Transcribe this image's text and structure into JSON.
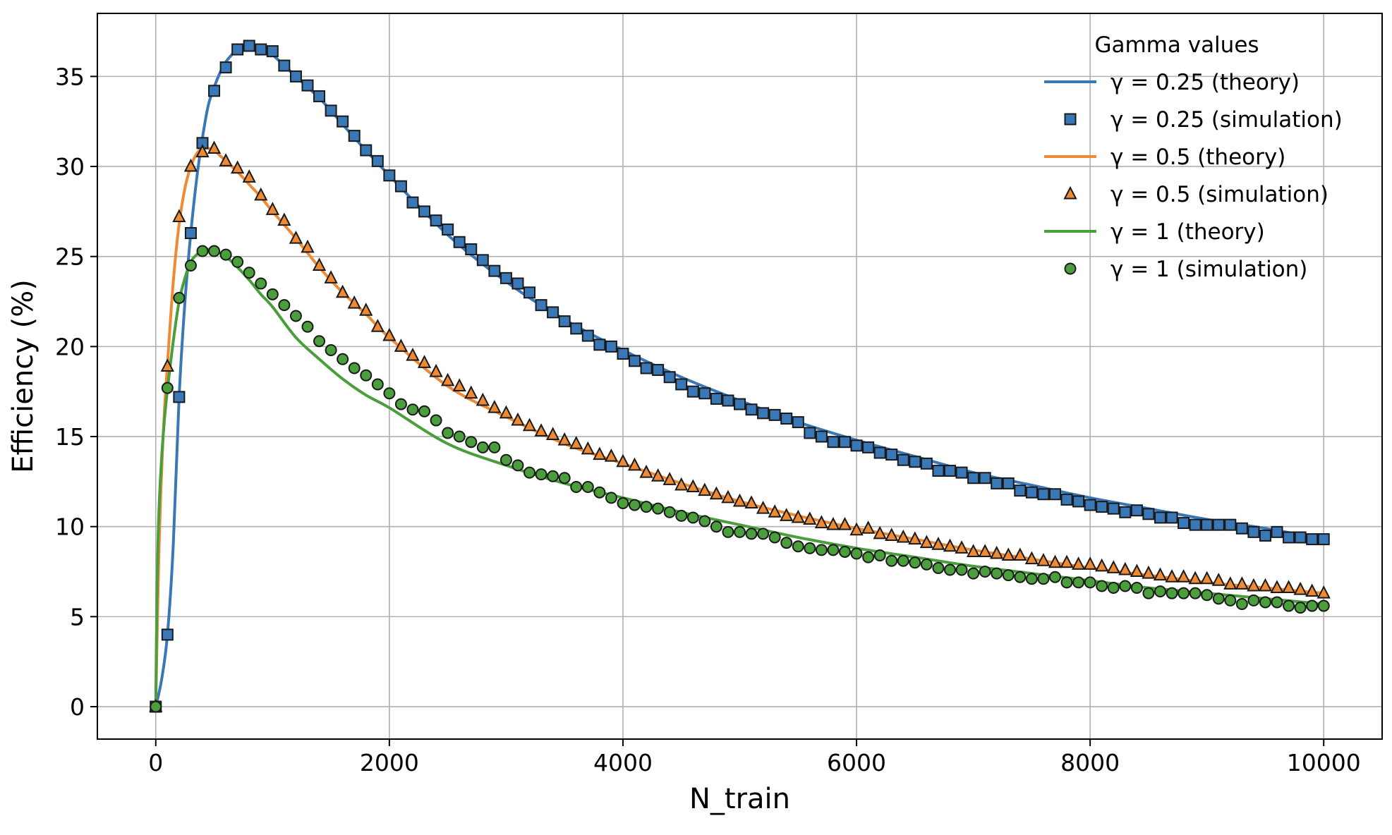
{
  "chart_data": {
    "type": "line",
    "title": "",
    "xlabel": "N_train",
    "ylabel": "Efficiency (%)",
    "xlim": [
      -500,
      10500
    ],
    "ylim": [
      -1.8,
      38.5
    ],
    "xticks": [
      0,
      2000,
      4000,
      6000,
      8000,
      10000
    ],
    "yticks": [
      0,
      5,
      10,
      15,
      20,
      25,
      30,
      35
    ],
    "grid": true,
    "legend": {
      "title": "Gamma values",
      "placement": "top-right"
    },
    "colors": {
      "gamma_025": "#3a77b6",
      "gamma_05": "#ef8a34",
      "gamma_1": "#4a9e3c"
    },
    "series": [
      {
        "name": "γ = 0.25 (theory)",
        "kind": "line",
        "color": "#3a77b6",
        "x": [
          0,
          50,
          100,
          150,
          200,
          250,
          300,
          350,
          400,
          450,
          500,
          550,
          600,
          650,
          700,
          750,
          800,
          850,
          900,
          950,
          1000,
          1100,
          1200,
          1300,
          1400,
          1500,
          1700,
          2000,
          2500,
          3000,
          3500,
          4000,
          4500,
          5000,
          5500,
          6000,
          6500,
          7000,
          7500,
          8000,
          8500,
          9000,
          9500,
          10000
        ],
        "y": [
          0,
          1.5,
          4.0,
          9.0,
          17.2,
          22.5,
          26.3,
          29.3,
          31.6,
          33.4,
          34.4,
          35.2,
          35.8,
          36.2,
          36.5,
          36.6,
          36.7,
          36.6,
          36.5,
          36.4,
          36.2,
          35.6,
          35.0,
          34.4,
          33.8,
          33.1,
          31.6,
          29.5,
          26.2,
          23.6,
          21.5,
          19.8,
          18.3,
          17.0,
          15.8,
          14.8,
          13.9,
          13.0,
          12.3,
          11.6,
          11.0,
          10.4,
          9.9,
          9.3
        ]
      },
      {
        "name": "γ = 0.25 (simulation)",
        "kind": "marker",
        "marker": "square",
        "color": "#3a77b6",
        "x": [
          0,
          100,
          200,
          300,
          400,
          500,
          600,
          700,
          800,
          900,
          1000,
          1100,
          1200,
          1300,
          1400,
          1500,
          1600,
          1700,
          1800,
          1900,
          2000,
          2100,
          2200,
          2300,
          2400,
          2500,
          2600,
          2700,
          2800,
          2900,
          3000,
          3100,
          3200,
          3300,
          3400,
          3500,
          3600,
          3700,
          3800,
          3900,
          4000,
          4100,
          4200,
          4300,
          4400,
          4500,
          4600,
          4700,
          4800,
          4900,
          5000,
          5100,
          5200,
          5300,
          5400,
          5500,
          5600,
          5700,
          5800,
          5900,
          6000,
          6100,
          6200,
          6300,
          6400,
          6500,
          6600,
          6700,
          6800,
          6900,
          7000,
          7100,
          7200,
          7300,
          7400,
          7500,
          7600,
          7700,
          7800,
          7900,
          8000,
          8100,
          8200,
          8300,
          8400,
          8500,
          8600,
          8700,
          8800,
          8900,
          9000,
          9100,
          9200,
          9300,
          9400,
          9500,
          9600,
          9700,
          9800,
          9900,
          10000
        ],
        "y": [
          0,
          4.0,
          17.2,
          26.3,
          31.3,
          34.2,
          35.5,
          36.5,
          36.7,
          36.5,
          36.4,
          35.6,
          35.0,
          34.5,
          33.9,
          33.1,
          32.5,
          31.7,
          30.9,
          30.3,
          29.5,
          28.9,
          28.0,
          27.5,
          27.0,
          26.5,
          25.8,
          25.4,
          24.8,
          24.2,
          23.8,
          23.5,
          23.0,
          22.3,
          21.9,
          21.4,
          21.0,
          20.6,
          20.1,
          20.0,
          19.6,
          19.2,
          18.8,
          18.7,
          18.3,
          17.9,
          17.5,
          17.4,
          17.1,
          17.0,
          16.8,
          16.5,
          16.3,
          16.2,
          16.0,
          15.8,
          15.2,
          15.0,
          14.7,
          14.7,
          14.5,
          14.4,
          14.1,
          14.0,
          13.7,
          13.6,
          13.5,
          13.1,
          13.1,
          13.0,
          12.7,
          12.7,
          12.4,
          12.4,
          12.0,
          11.9,
          11.8,
          11.8,
          11.5,
          11.4,
          11.2,
          11.1,
          11.0,
          10.8,
          10.9,
          10.7,
          10.5,
          10.5,
          10.2,
          10.1,
          10.1,
          10.1,
          10.1,
          9.9,
          9.7,
          9.5,
          9.7,
          9.4,
          9.4,
          9.3,
          9.3
        ]
      },
      {
        "name": "γ = 0.5 (theory)",
        "kind": "line",
        "color": "#ef8a34",
        "x": [
          0,
          25,
          50,
          75,
          100,
          150,
          200,
          250,
          300,
          350,
          400,
          450,
          500,
          550,
          600,
          700,
          800,
          900,
          1000,
          1200,
          1400,
          1600,
          1800,
          2000,
          2500,
          3000,
          3500,
          4000,
          4500,
          5000,
          5500,
          6000,
          6500,
          7000,
          7500,
          8000,
          8500,
          9000,
          9500,
          10000
        ],
        "y": [
          0,
          8.0,
          13.0,
          16.5,
          19.0,
          23.6,
          26.8,
          28.8,
          30.0,
          30.7,
          31.0,
          31.0,
          30.9,
          30.6,
          30.3,
          29.7,
          29.0,
          28.3,
          27.5,
          26.0,
          24.4,
          23.0,
          21.8,
          20.5,
          17.8,
          16.1,
          14.6,
          13.5,
          12.4,
          11.4,
          10.6,
          9.9,
          9.3,
          8.7,
          8.2,
          7.7,
          7.3,
          6.9,
          6.6,
          6.3
        ]
      },
      {
        "name": "γ = 0.5 (simulation)",
        "kind": "marker",
        "marker": "triangle",
        "color": "#ef8a34",
        "x": [
          0,
          100,
          200,
          300,
          400,
          500,
          600,
          700,
          800,
          900,
          1000,
          1100,
          1200,
          1300,
          1400,
          1500,
          1600,
          1700,
          1800,
          1900,
          2000,
          2100,
          2200,
          2300,
          2400,
          2500,
          2600,
          2700,
          2800,
          2900,
          3000,
          3100,
          3200,
          3300,
          3400,
          3500,
          3600,
          3700,
          3800,
          3900,
          4000,
          4100,
          4200,
          4300,
          4400,
          4500,
          4600,
          4700,
          4800,
          4900,
          5000,
          5100,
          5200,
          5300,
          5400,
          5500,
          5600,
          5700,
          5800,
          5900,
          6000,
          6100,
          6200,
          6300,
          6400,
          6500,
          6600,
          6700,
          6800,
          6900,
          7000,
          7100,
          7200,
          7300,
          7400,
          7500,
          7600,
          7700,
          7800,
          7900,
          8000,
          8100,
          8200,
          8300,
          8400,
          8500,
          8600,
          8700,
          8800,
          8900,
          9000,
          9100,
          9200,
          9300,
          9400,
          9500,
          9600,
          9700,
          9800,
          9900,
          10000
        ],
        "y": [
          0,
          18.9,
          27.2,
          30.0,
          30.8,
          31.0,
          30.3,
          29.9,
          29.4,
          28.4,
          27.6,
          27.0,
          26.0,
          25.5,
          24.5,
          23.8,
          23.0,
          22.4,
          22.0,
          21.1,
          20.6,
          20.0,
          19.5,
          19.1,
          18.6,
          18.1,
          17.8,
          17.4,
          17.0,
          16.6,
          16.3,
          15.9,
          15.6,
          15.3,
          15.1,
          14.8,
          14.6,
          14.3,
          14.0,
          13.9,
          13.6,
          13.4,
          13.0,
          12.8,
          12.6,
          12.3,
          12.2,
          12.0,
          11.8,
          11.6,
          11.4,
          11.3,
          11.0,
          10.8,
          10.6,
          10.5,
          10.4,
          10.2,
          10.1,
          10.1,
          9.8,
          9.9,
          9.6,
          9.5,
          9.4,
          9.3,
          9.1,
          9.0,
          8.9,
          8.8,
          8.6,
          8.6,
          8.5,
          8.4,
          8.4,
          8.2,
          8.1,
          8.0,
          8.0,
          7.9,
          7.9,
          7.8,
          7.7,
          7.6,
          7.5,
          7.4,
          7.3,
          7.2,
          7.2,
          7.1,
          7.1,
          7.0,
          6.8,
          6.8,
          6.7,
          6.7,
          6.6,
          6.6,
          6.5,
          6.4,
          6.3
        ]
      },
      {
        "name": "γ = 1 (theory)",
        "kind": "line",
        "color": "#4a9e3c",
        "x": [
          0,
          10,
          25,
          50,
          75,
          100,
          150,
          200,
          250,
          300,
          350,
          400,
          450,
          500,
          550,
          600,
          700,
          800,
          900,
          1000,
          1200,
          1400,
          1600,
          1800,
          2000,
          2500,
          3000,
          3500,
          4000,
          4500,
          5000,
          5500,
          6000,
          6500,
          7000,
          7500,
          8000,
          8500,
          9000,
          9500,
          10000
        ],
        "y": [
          0,
          6.0,
          10.5,
          13.8,
          16.0,
          17.6,
          20.3,
          22.5,
          23.8,
          24.7,
          25.1,
          25.3,
          25.4,
          25.3,
          25.2,
          25.0,
          24.4,
          23.7,
          22.9,
          22.2,
          20.5,
          19.3,
          18.2,
          17.3,
          16.6,
          14.6,
          13.4,
          12.4,
          11.6,
          10.8,
          10.1,
          9.4,
          8.8,
          8.3,
          7.8,
          7.4,
          7.0,
          6.6,
          6.3,
          6.0,
          5.7
        ]
      },
      {
        "name": "γ = 1 (simulation)",
        "kind": "marker",
        "marker": "circle",
        "color": "#4a9e3c",
        "x": [
          0,
          100,
          200,
          300,
          400,
          500,
          600,
          700,
          800,
          900,
          1000,
          1100,
          1200,
          1300,
          1400,
          1500,
          1600,
          1700,
          1800,
          1900,
          2000,
          2100,
          2200,
          2300,
          2400,
          2500,
          2600,
          2700,
          2800,
          2900,
          3000,
          3100,
          3200,
          3300,
          3400,
          3500,
          3600,
          3700,
          3800,
          3900,
          4000,
          4100,
          4200,
          4300,
          4400,
          4500,
          4600,
          4700,
          4800,
          4900,
          5000,
          5100,
          5200,
          5300,
          5400,
          5500,
          5600,
          5700,
          5800,
          5900,
          6000,
          6100,
          6200,
          6300,
          6400,
          6500,
          6600,
          6700,
          6800,
          6900,
          7000,
          7100,
          7200,
          7300,
          7400,
          7500,
          7600,
          7700,
          7800,
          7900,
          8000,
          8100,
          8200,
          8300,
          8400,
          8500,
          8600,
          8700,
          8800,
          8900,
          9000,
          9100,
          9200,
          9300,
          9400,
          9500,
          9600,
          9700,
          9800,
          9900,
          10000
        ],
        "y": [
          0,
          17.7,
          22.7,
          24.5,
          25.3,
          25.3,
          25.1,
          24.7,
          24.1,
          23.5,
          22.9,
          22.3,
          21.7,
          21.1,
          20.3,
          19.8,
          19.3,
          18.8,
          18.4,
          17.9,
          17.4,
          16.8,
          16.5,
          16.4,
          15.9,
          15.2,
          15.0,
          14.7,
          14.4,
          14.4,
          13.7,
          13.4,
          13.0,
          12.9,
          12.8,
          12.7,
          12.2,
          12.2,
          11.9,
          11.6,
          11.3,
          11.2,
          11.1,
          11.0,
          10.8,
          10.6,
          10.5,
          10.3,
          10.0,
          9.7,
          9.7,
          9.6,
          9.6,
          9.4,
          9.1,
          8.9,
          8.8,
          8.7,
          8.7,
          8.6,
          8.5,
          8.3,
          8.4,
          8.1,
          8.1,
          8.0,
          7.9,
          7.7,
          7.6,
          7.6,
          7.4,
          7.5,
          7.4,
          7.3,
          7.2,
          7.1,
          7.1,
          7.2,
          6.9,
          6.9,
          6.9,
          6.7,
          6.6,
          6.7,
          6.6,
          6.3,
          6.4,
          6.3,
          6.3,
          6.3,
          6.2,
          6.0,
          5.9,
          5.7,
          5.9,
          5.8,
          5.8,
          5.6,
          5.5,
          5.6,
          5.6
        ]
      }
    ]
  }
}
